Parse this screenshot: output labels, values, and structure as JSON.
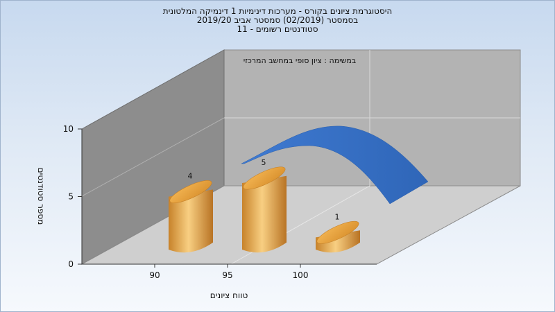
{
  "chart_data": {
    "type": "bar",
    "title_lines": [
      "היסטוגרמת ציונים בקורס - מערכות דינימיות 1 דינמיקה המלטונית",
      "בסמסטר  (02/2019)  סמסטר אביב 2019/20",
      "סטודנטים רשומים - 11"
    ],
    "annotation": "במשימה : ציון סופי במחשב המרכזי",
    "xlabel": "טווח ציונים",
    "ylabel": "מספר סטודנטים",
    "categories": [
      "90",
      "95",
      "100"
    ],
    "values": [
      4,
      5,
      1
    ],
    "data_labels": [
      "4",
      "5",
      "1"
    ],
    "x_tick_labels": [
      "90",
      "95",
      "100"
    ],
    "y_tick_labels": [
      "0",
      "5",
      "10"
    ],
    "ylim": [
      0,
      10
    ],
    "curve_color": "#3f7ad1",
    "bar_color": "#e8a23c",
    "style": "3d"
  }
}
